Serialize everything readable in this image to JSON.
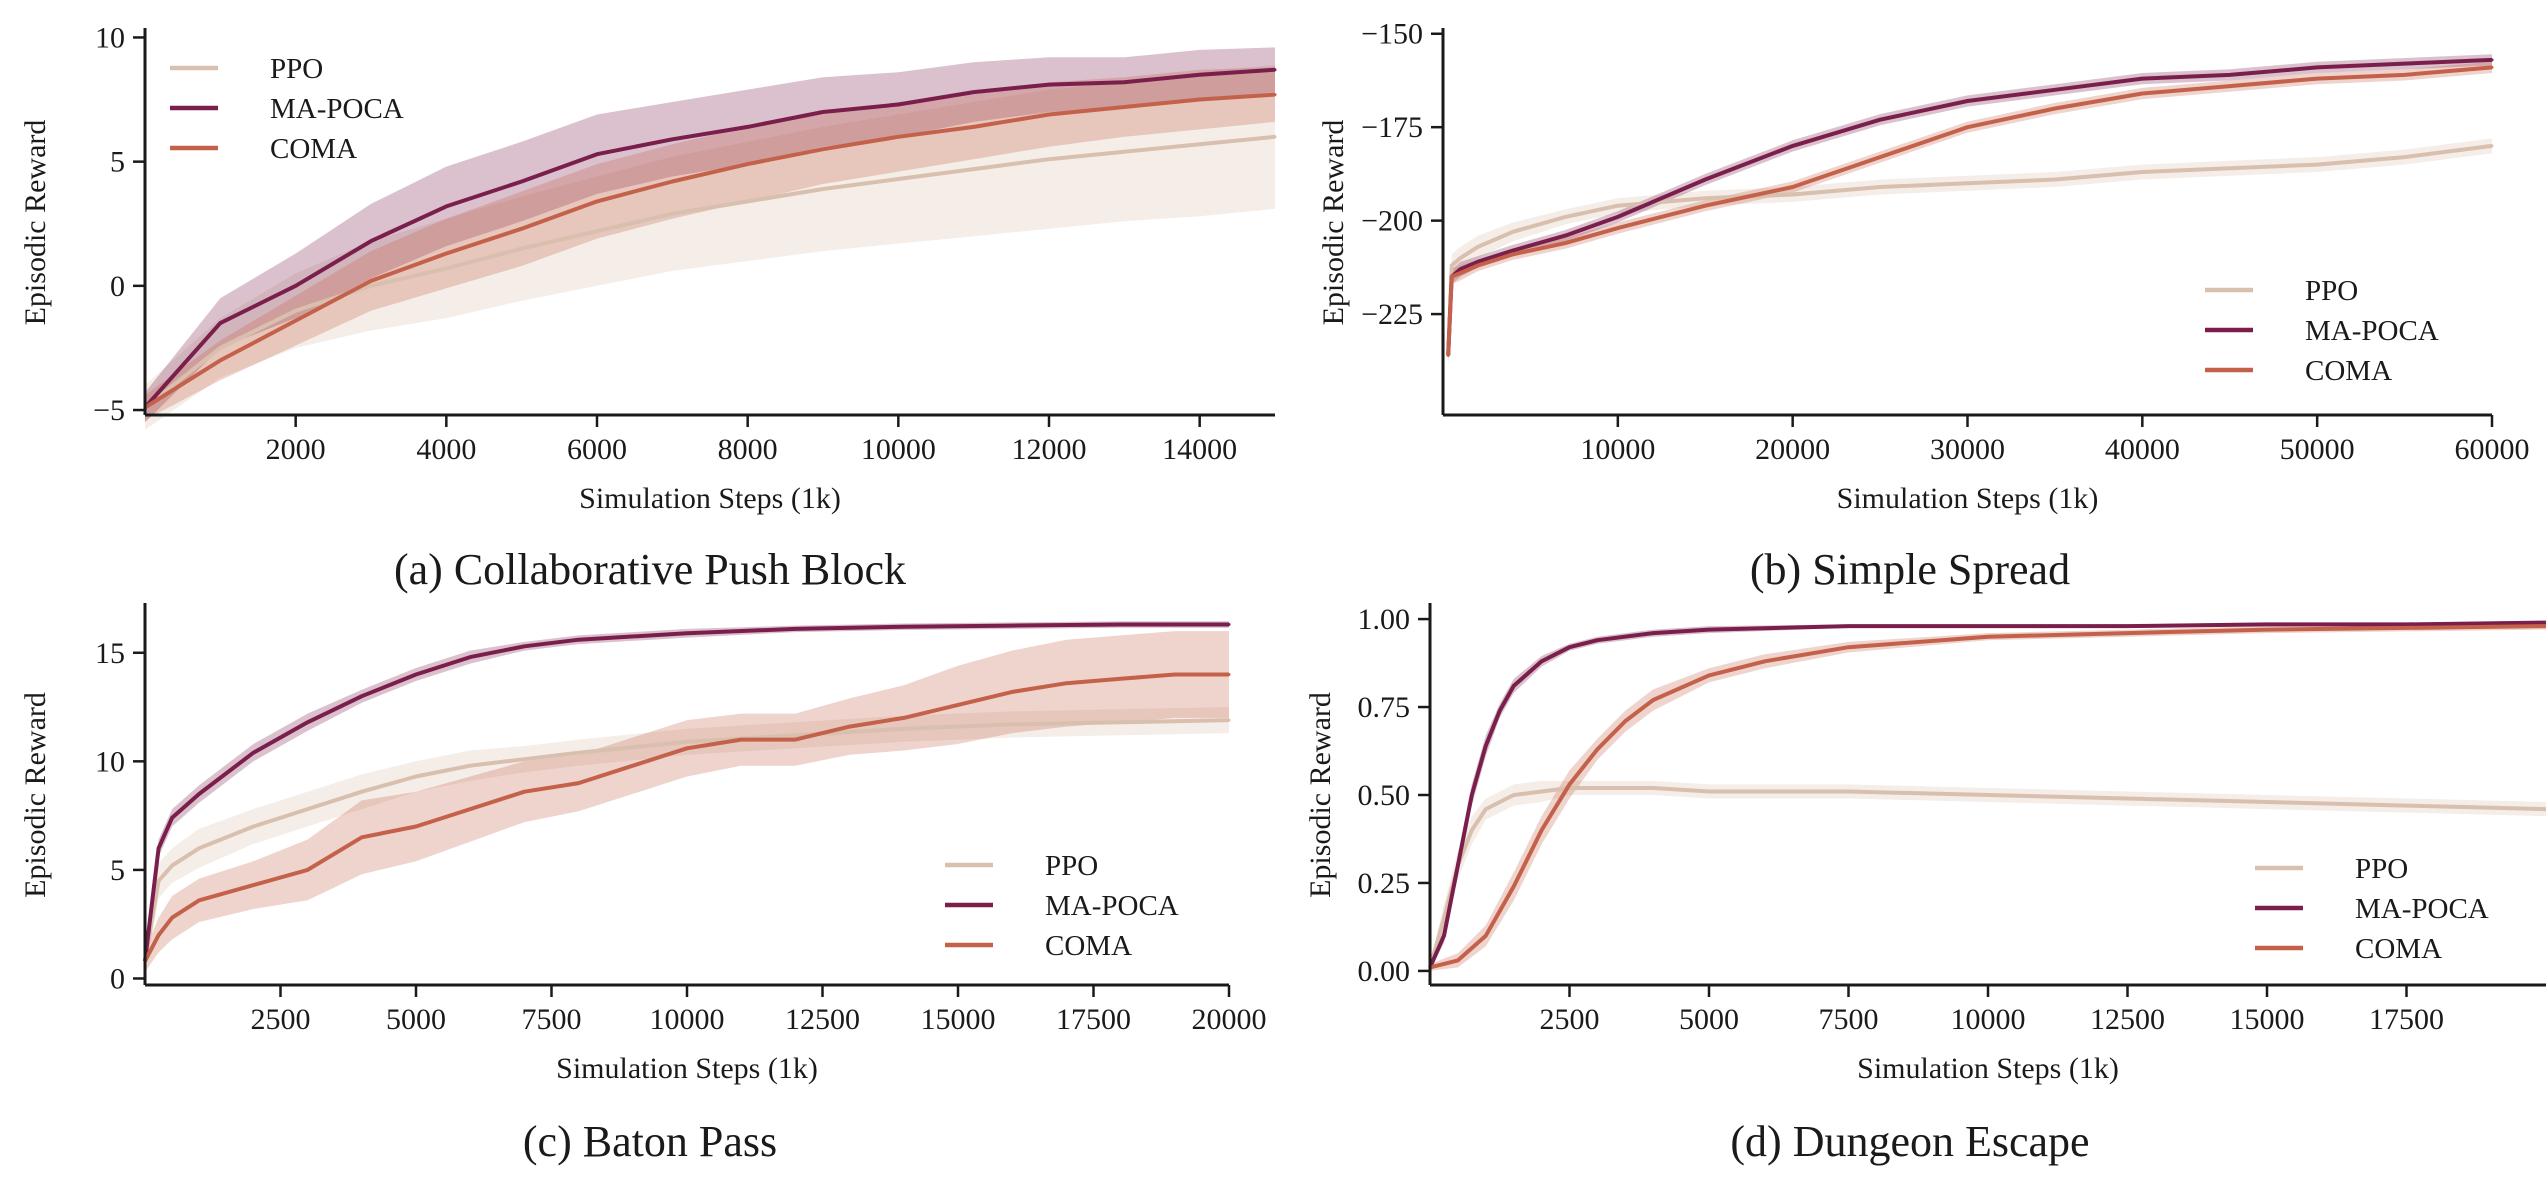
{
  "colors": {
    "PPO": "#d9bfae",
    "MA-POCA": "#7a1f4b",
    "COMA": "#c4614b",
    "axis": "#1a1a1a"
  },
  "chart_data": [
    {
      "type": "line",
      "caption": "(a) Collaborative Push Block",
      "xlabel": "Simulation Steps (1k)",
      "ylabel": "Episodic Reward",
      "xlim": [
        0,
        15000
      ],
      "ylim": [
        -5.2,
        10.3
      ],
      "xticks": [
        2000,
        4000,
        6000,
        8000,
        10000,
        12000,
        14000
      ],
      "xtick_labels": [
        "2000",
        "4000",
        "6000",
        "8000",
        "10000",
        "12000",
        "14000"
      ],
      "yticks": [
        -5,
        0,
        5,
        10
      ],
      "ytick_labels": [
        "−5",
        "0",
        "5",
        "10"
      ],
      "legend": "top-left",
      "grid": false,
      "series": [
        {
          "name": "PPO",
          "x": [
            0,
            1000,
            2000,
            3000,
            4000,
            5000,
            6000,
            7000,
            8000,
            9000,
            10000,
            11000,
            12000,
            13000,
            14000,
            15000
          ],
          "y": [
            -4.9,
            -2.5,
            -1.0,
            0.0,
            0.7,
            1.5,
            2.2,
            2.9,
            3.4,
            3.9,
            4.3,
            4.7,
            5.1,
            5.4,
            5.7,
            6.0
          ],
          "band": [
            0.9,
            1.2,
            1.5,
            1.8,
            2.0,
            2.1,
            2.2,
            2.3,
            2.4,
            2.5,
            2.6,
            2.7,
            2.8,
            2.8,
            2.9,
            2.9
          ]
        },
        {
          "name": "MA-POCA",
          "x": [
            0,
            1000,
            2000,
            3000,
            4000,
            5000,
            6000,
            7000,
            8000,
            9000,
            10000,
            11000,
            12000,
            13000,
            14000,
            15000
          ],
          "y": [
            -4.9,
            -1.5,
            0.0,
            1.8,
            3.2,
            4.2,
            5.3,
            5.9,
            6.4,
            7.0,
            7.3,
            7.8,
            8.1,
            8.2,
            8.5,
            8.7
          ],
          "band": [
            0.6,
            1.0,
            1.3,
            1.5,
            1.6,
            1.6,
            1.6,
            1.5,
            1.5,
            1.4,
            1.3,
            1.2,
            1.1,
            1.0,
            1.0,
            0.9
          ]
        },
        {
          "name": "COMA",
          "x": [
            0,
            1000,
            2000,
            3000,
            4000,
            5000,
            6000,
            7000,
            8000,
            9000,
            10000,
            11000,
            12000,
            13000,
            14000,
            15000
          ],
          "y": [
            -4.9,
            -3.0,
            -1.4,
            0.2,
            1.3,
            2.3,
            3.4,
            4.2,
            4.9,
            5.5,
            6.0,
            6.4,
            6.9,
            7.2,
            7.5,
            7.7
          ],
          "band": [
            0.5,
            0.8,
            1.0,
            1.2,
            1.4,
            1.5,
            1.5,
            1.5,
            1.5,
            1.4,
            1.4,
            1.3,
            1.3,
            1.2,
            1.2,
            1.1
          ]
        }
      ]
    },
    {
      "type": "line",
      "caption": "(b) Simple Spread",
      "xlabel": "Simulation Steps (1k)",
      "ylabel": "Episodic Reward",
      "xlim": [
        0,
        60000
      ],
      "ylim": [
        -252,
        -149
      ],
      "xticks": [
        10000,
        20000,
        30000,
        40000,
        50000,
        60000
      ],
      "xtick_labels": [
        "10000",
        "20000",
        "30000",
        "40000",
        "50000",
        "60000"
      ],
      "yticks": [
        -225,
        -200,
        -175,
        -150
      ],
      "ytick_labels": [
        "−225",
        "−200",
        "−175",
        "−150"
      ],
      "legend": "center-right",
      "grid": false,
      "series": [
        {
          "name": "PPO",
          "x": [
            300,
            500,
            1000,
            2000,
            4000,
            7000,
            10000,
            15000,
            20000,
            25000,
            30000,
            35000,
            40000,
            45000,
            50000,
            55000,
            60000
          ],
          "y": [
            -236,
            -212,
            -210,
            -207,
            -203,
            -199,
            -196,
            -194,
            -193,
            -191,
            -190,
            -189,
            -187,
            -186,
            -185,
            -183,
            -180
          ],
          "band": [
            3,
            3,
            3,
            3,
            2.5,
            2,
            2,
            2,
            2,
            2,
            2,
            2,
            2,
            2,
            2,
            2,
            2
          ]
        },
        {
          "name": "MA-POCA",
          "x": [
            300,
            500,
            1000,
            2000,
            4000,
            7000,
            10000,
            15000,
            20000,
            25000,
            30000,
            35000,
            40000,
            45000,
            50000,
            55000,
            60000
          ],
          "y": [
            -236,
            -215,
            -213,
            -211,
            -208,
            -204,
            -199,
            -189,
            -180,
            -173,
            -168,
            -165,
            -162,
            -161,
            -159,
            -158,
            -157
          ],
          "band": [
            2,
            2,
            2,
            1.5,
            1.5,
            1.5,
            1.5,
            1.5,
            1.5,
            1.5,
            1.5,
            1.5,
            1.5,
            1.5,
            1.5,
            1.5,
            1.5
          ]
        },
        {
          "name": "COMA",
          "x": [
            300,
            500,
            1000,
            2000,
            4000,
            7000,
            10000,
            15000,
            20000,
            25000,
            30000,
            35000,
            40000,
            45000,
            50000,
            55000,
            60000
          ],
          "y": [
            -236,
            -215,
            -214,
            -212,
            -209,
            -206,
            -202,
            -196,
            -191,
            -183,
            -175,
            -170,
            -166,
            -164,
            -162,
            -161,
            -159
          ],
          "band": [
            2,
            2,
            2,
            1.5,
            1.5,
            1.5,
            1.5,
            1.5,
            1.5,
            1.5,
            1.5,
            1.5,
            1.5,
            1.5,
            1.5,
            1.5,
            1.5
          ]
        }
      ]
    },
    {
      "type": "line",
      "caption": "(c) Baton Pass",
      "xlabel": "Simulation Steps (1k)",
      "ylabel": "Episodic Reward",
      "xlim": [
        0,
        20000
      ],
      "ylim": [
        -0.3,
        17.2
      ],
      "xticks": [
        2500,
        5000,
        7500,
        10000,
        12500,
        15000,
        17500,
        20000
      ],
      "xtick_labels": [
        "2500",
        "5000",
        "7500",
        "10000",
        "12500",
        "15000",
        "17500",
        "20000"
      ],
      "yticks": [
        0,
        5,
        10,
        15
      ],
      "ytick_labels": [
        "0",
        "5",
        "10",
        "15"
      ],
      "legend": "center-right",
      "grid": false,
      "series": [
        {
          "name": "PPO",
          "x": [
            0,
            250,
            500,
            1000,
            2000,
            3000,
            4000,
            5000,
            6000,
            7000,
            8000,
            10000,
            12000,
            14000,
            16000,
            18000,
            20000
          ],
          "y": [
            0.8,
            4.5,
            5.2,
            6.0,
            7.0,
            7.8,
            8.6,
            9.3,
            9.8,
            10.1,
            10.4,
            10.9,
            11.2,
            11.5,
            11.7,
            11.8,
            11.9
          ],
          "band": [
            0.5,
            0.8,
            0.8,
            0.9,
            0.8,
            0.8,
            0.8,
            0.7,
            0.7,
            0.6,
            0.6,
            0.6,
            0.6,
            0.6,
            0.6,
            0.6,
            0.6
          ]
        },
        {
          "name": "MA-POCA",
          "x": [
            0,
            250,
            500,
            1000,
            2000,
            3000,
            4000,
            5000,
            6000,
            7000,
            8000,
            10000,
            12000,
            14000,
            16000,
            18000,
            20000
          ],
          "y": [
            0.8,
            6.0,
            7.4,
            8.5,
            10.4,
            11.8,
            13.0,
            14.0,
            14.8,
            15.3,
            15.6,
            15.9,
            16.1,
            16.2,
            16.25,
            16.3,
            16.3
          ],
          "band": [
            0.3,
            0.4,
            0.4,
            0.4,
            0.4,
            0.4,
            0.3,
            0.3,
            0.3,
            0.2,
            0.2,
            0.2,
            0.15,
            0.15,
            0.15,
            0.15,
            0.15
          ]
        },
        {
          "name": "COMA",
          "x": [
            0,
            250,
            500,
            1000,
            2000,
            3000,
            4000,
            5000,
            6000,
            7000,
            8000,
            9000,
            10000,
            11000,
            12000,
            13000,
            14000,
            15000,
            16000,
            17000,
            18000,
            19000,
            20000
          ],
          "y": [
            0.8,
            2.0,
            2.8,
            3.6,
            4.3,
            5.0,
            6.5,
            7.0,
            7.8,
            8.6,
            9.0,
            9.8,
            10.6,
            11.0,
            11.0,
            11.6,
            12.0,
            12.6,
            13.2,
            13.6,
            13.8,
            14.0,
            14.0
          ],
          "band": [
            0.5,
            0.8,
            1.0,
            1.0,
            1.1,
            1.4,
            1.7,
            1.6,
            1.5,
            1.4,
            1.3,
            1.3,
            1.3,
            1.2,
            1.2,
            1.3,
            1.5,
            1.8,
            1.9,
            2.0,
            2.0,
            2.0,
            2.0
          ]
        }
      ]
    },
    {
      "type": "line",
      "caption": "(d) Dungeon Escape",
      "xlabel": "Simulation Steps (1k)",
      "ylabel": "Episodic Reward",
      "xlim": [
        0,
        20000
      ],
      "ylim": [
        -0.04,
        1.04
      ],
      "xticks": [
        2500,
        5000,
        7500,
        10000,
        12500,
        15000,
        17500
      ],
      "xtick_labels": [
        "2500",
        "5000",
        "7500",
        "10000",
        "12500",
        "15000",
        "17500"
      ],
      "yticks": [
        0.0,
        0.25,
        0.5,
        0.75,
        1.0
      ],
      "ytick_labels": [
        "0.00",
        "0.25",
        "0.50",
        "0.75",
        "1.00"
      ],
      "legend": "center-right",
      "grid": false,
      "series": [
        {
          "name": "PPO",
          "x": [
            0,
            250,
            500,
            750,
            1000,
            1500,
            2000,
            2500,
            3000,
            4000,
            5000,
            7500,
            10000,
            12500,
            15000,
            17500,
            20000
          ],
          "y": [
            0.01,
            0.15,
            0.3,
            0.4,
            0.46,
            0.5,
            0.51,
            0.52,
            0.52,
            0.52,
            0.51,
            0.51,
            0.5,
            0.49,
            0.48,
            0.47,
            0.46
          ],
          "band": [
            0.01,
            0.04,
            0.04,
            0.04,
            0.03,
            0.03,
            0.03,
            0.02,
            0.02,
            0.02,
            0.02,
            0.02,
            0.02,
            0.02,
            0.02,
            0.02,
            0.02
          ]
        },
        {
          "name": "MA-POCA",
          "x": [
            0,
            250,
            500,
            750,
            1000,
            1250,
            1500,
            2000,
            2500,
            3000,
            4000,
            5000,
            7500,
            10000,
            12500,
            15000,
            17500,
            20000
          ],
          "y": [
            0.01,
            0.1,
            0.3,
            0.5,
            0.64,
            0.74,
            0.81,
            0.88,
            0.92,
            0.94,
            0.96,
            0.97,
            0.98,
            0.98,
            0.98,
            0.985,
            0.985,
            0.99
          ],
          "band": [
            0.01,
            0.02,
            0.03,
            0.03,
            0.03,
            0.02,
            0.02,
            0.015,
            0.01,
            0.01,
            0.01,
            0.01,
            0.005,
            0.005,
            0.005,
            0.005,
            0.005,
            0.005
          ]
        },
        {
          "name": "COMA",
          "x": [
            0,
            500,
            1000,
            1500,
            2000,
            2500,
            3000,
            3500,
            4000,
            5000,
            6000,
            7500,
            10000,
            12500,
            15000,
            17500,
            20000
          ],
          "y": [
            0.01,
            0.03,
            0.1,
            0.24,
            0.4,
            0.53,
            0.63,
            0.71,
            0.77,
            0.84,
            0.88,
            0.92,
            0.95,
            0.96,
            0.97,
            0.975,
            0.98
          ],
          "band": [
            0.01,
            0.02,
            0.03,
            0.04,
            0.04,
            0.04,
            0.03,
            0.03,
            0.03,
            0.02,
            0.02,
            0.015,
            0.01,
            0.01,
            0.01,
            0.01,
            0.01
          ]
        }
      ]
    }
  ]
}
